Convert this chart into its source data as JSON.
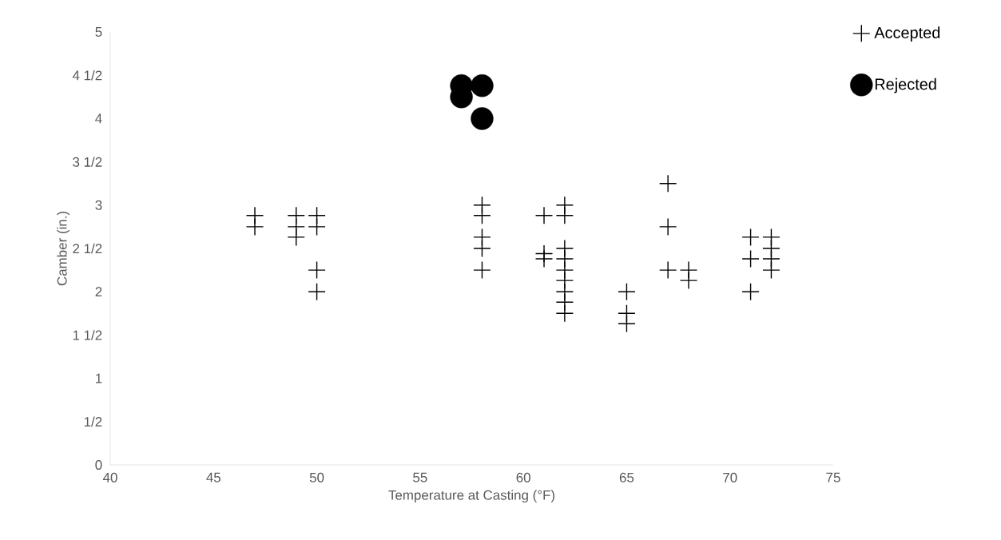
{
  "chart_data": {
    "type": "scatter",
    "xlabel": "Temperature at Casting (°F)",
    "ylabel": "Camber (in.)",
    "xlim": [
      40,
      75
    ],
    "xticks": [
      40,
      45,
      50,
      55,
      60,
      65,
      70,
      75
    ],
    "ylim": [
      0,
      5
    ],
    "yticks": [
      0,
      {
        "value": 0.5,
        "label": "1/2"
      },
      1,
      {
        "value": 1.5,
        "label": "1 1/2"
      },
      2,
      {
        "value": 2.5,
        "label": "2 1/2"
      },
      3,
      {
        "value": 3.5,
        "label": "3 1/2"
      },
      4,
      {
        "value": 4.5,
        "label": "4 1/2"
      },
      5
    ],
    "legend": "top right",
    "series": [
      {
        "name": "Accepted",
        "color": "#000000",
        "marker": "cross",
        "x": [
          47,
          47,
          49,
          49,
          49,
          50,
          50,
          50,
          50,
          58,
          58,
          58,
          58,
          58,
          61,
          61,
          61,
          62,
          62,
          62,
          62,
          62,
          62,
          62,
          62,
          62,
          65,
          65,
          65,
          67,
          67,
          67,
          68,
          68,
          71,
          71,
          71,
          72,
          72,
          72,
          72
        ],
        "values": [
          2.88,
          2.75,
          2.88,
          2.75,
          2.63,
          2.88,
          2.75,
          2.25,
          2.0,
          3.0,
          2.88,
          2.63,
          2.5,
          2.25,
          2.88,
          2.44,
          2.38,
          3.0,
          2.88,
          2.5,
          2.38,
          2.25,
          2.13,
          2.0,
          1.88,
          1.75,
          2.0,
          1.75,
          1.63,
          3.25,
          2.75,
          2.25,
          2.25,
          2.13,
          2.63,
          2.38,
          2.0,
          2.63,
          2.5,
          2.38,
          2.25
        ]
      },
      {
        "name": "Rejected",
        "color": "#000000",
        "marker": "circle",
        "x": [
          57,
          57,
          58,
          58
        ],
        "values": [
          4.38,
          4.25,
          4.38,
          4.0
        ]
      }
    ]
  }
}
